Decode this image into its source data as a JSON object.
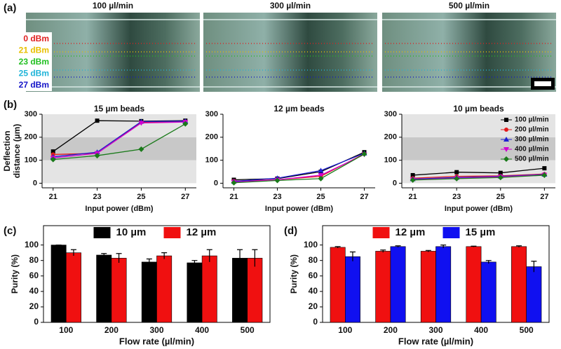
{
  "panel_a": {
    "label": "(a)",
    "titles": [
      "100 µl/min",
      "300 µl/min",
      "500 µl/min"
    ],
    "power_labels": [
      "0 dBm",
      "21 dBm",
      "23 dBm",
      "25 dBm",
      "27 dBm"
    ],
    "power_colors": [
      "#e02020",
      "#e8c000",
      "#22c022",
      "#20b4d8",
      "#1414c8"
    ]
  },
  "chart_data": [
    {
      "type": "line",
      "panel": "(b)",
      "title": "15 µm beads",
      "ylabel": [
        "Deflection",
        "distance (µm)"
      ],
      "xlabel": "Input power (dBm)",
      "x": [
        21,
        23,
        25,
        27
      ],
      "xlim": [
        20.5,
        27.5
      ],
      "xticks": [
        21,
        23,
        25,
        27
      ],
      "ylim": [
        -20,
        300
      ],
      "yticks": [
        0,
        100,
        200,
        300
      ],
      "bands": [
        {
          "from": 0,
          "to": 100,
          "color": "#e4e4e4"
        },
        {
          "from": 100,
          "to": 200,
          "color": "#c8c8c8"
        },
        {
          "from": 200,
          "to": 300,
          "color": "#e4e4e4"
        }
      ],
      "series": [
        {
          "color": "#000000",
          "marker": "square",
          "values": [
            138,
            272,
            270,
            272
          ]
        },
        {
          "color": "#e41a1c",
          "marker": "circle",
          "values": [
            125,
            130,
            265,
            268
          ]
        },
        {
          "color": "#1f1fd0",
          "marker": "triangle",
          "values": [
            115,
            135,
            268,
            270
          ]
        },
        {
          "color": "#d000d0",
          "marker": "triangle-down",
          "values": [
            110,
            130,
            262,
            266
          ]
        },
        {
          "color": "#1a7a1a",
          "marker": "diamond",
          "values": [
            103,
            120,
            148,
            258
          ]
        }
      ]
    },
    {
      "type": "line",
      "title": "12 µm beads",
      "xlabel": "Input power (dBm)",
      "x": [
        21,
        23,
        25,
        27
      ],
      "xlim": [
        20.5,
        27.5
      ],
      "xticks": [
        21,
        23,
        25,
        27
      ],
      "ylim": [
        -20,
        300
      ],
      "yticks": [
        0,
        100,
        200,
        300
      ],
      "series": [
        {
          "color": "#000000",
          "marker": "square",
          "values": [
            15,
            20,
            50,
            135
          ]
        },
        {
          "color": "#e41a1c",
          "marker": "circle",
          "values": [
            10,
            15,
            30,
            128
          ]
        },
        {
          "color": "#1f1fd0",
          "marker": "triangle",
          "values": [
            8,
            22,
            55,
            130
          ]
        },
        {
          "color": "#d000d0",
          "marker": "triangle-down",
          "values": [
            5,
            15,
            35,
            125
          ]
        },
        {
          "color": "#1a7a1a",
          "marker": "diamond",
          "values": [
            2,
            12,
            20,
            127
          ]
        }
      ]
    },
    {
      "type": "line",
      "title": "10 µm beads",
      "xlabel": "Input power (dBm)",
      "x": [
        21,
        23,
        25,
        27
      ],
      "xlim": [
        20.5,
        27.5
      ],
      "xticks": [
        21,
        23,
        25,
        27
      ],
      "ylim": [
        -20,
        300
      ],
      "yticks": [
        0,
        100,
        200,
        300
      ],
      "bands": [
        {
          "from": 0,
          "to": 100,
          "color": "#e4e4e4"
        },
        {
          "from": 100,
          "to": 200,
          "color": "#c8c8c8"
        },
        {
          "from": 200,
          "to": 300,
          "color": "#e4e4e4"
        }
      ],
      "legend": "upper right",
      "series": [
        {
          "name": "100 µl/min",
          "color": "#000000",
          "marker": "square",
          "values": [
            35,
            48,
            45,
            65
          ]
        },
        {
          "name": "200 µl/min",
          "color": "#e41a1c",
          "marker": "circle",
          "values": [
            22,
            30,
            32,
            40
          ]
        },
        {
          "name": "300 µl/min",
          "color": "#1f1fd0",
          "marker": "triangle",
          "values": [
            18,
            25,
            30,
            38
          ]
        },
        {
          "name": "400 µl/min",
          "color": "#d000d0",
          "marker": "triangle-down",
          "values": [
            15,
            22,
            28,
            36
          ]
        },
        {
          "name": "500 µl/min",
          "color": "#1a7a1a",
          "marker": "diamond",
          "values": [
            14,
            20,
            25,
            35
          ]
        }
      ]
    },
    {
      "type": "bar",
      "panel": "(c)",
      "ylabel": [
        "Purity (%)"
      ],
      "xlabel": "Flow rate (µl/min)",
      "categories": [
        "100",
        "200",
        "300",
        "400",
        "500"
      ],
      "ylim": [
        0,
        125
      ],
      "yticks": [
        0,
        20,
        40,
        60,
        80,
        100
      ],
      "legend": "upper center",
      "series": [
        {
          "name": "10 µm",
          "color": "#000000",
          "values": [
            100,
            87,
            78,
            77,
            83
          ],
          "errors": [
            0,
            2,
            4,
            3,
            11
          ]
        },
        {
          "name": "12 µm",
          "color": "#f01010",
          "values": [
            90,
            83,
            86,
            86,
            83
          ],
          "errors": [
            4,
            6,
            4,
            8,
            11
          ]
        }
      ]
    },
    {
      "type": "bar",
      "panel": "(d)",
      "ylabel": [
        "Purity (%)"
      ],
      "xlabel": "Flow rate (µl/min)",
      "categories": [
        "100",
        "200",
        "300",
        "400",
        "500"
      ],
      "ylim": [
        0,
        125
      ],
      "yticks": [
        0,
        20,
        40,
        60,
        80,
        100
      ],
      "legend": "upper center",
      "series": [
        {
          "name": "12 µm",
          "color": "#f01010",
          "values": [
            97,
            92,
            92,
            98,
            98
          ],
          "errors": [
            1,
            1.5,
            1,
            0.5,
            1
          ]
        },
        {
          "name": "15 µm",
          "color": "#1010f0",
          "values": [
            85,
            98,
            98,
            78,
            72
          ],
          "errors": [
            6,
            1,
            2,
            2,
            7
          ]
        }
      ]
    }
  ]
}
